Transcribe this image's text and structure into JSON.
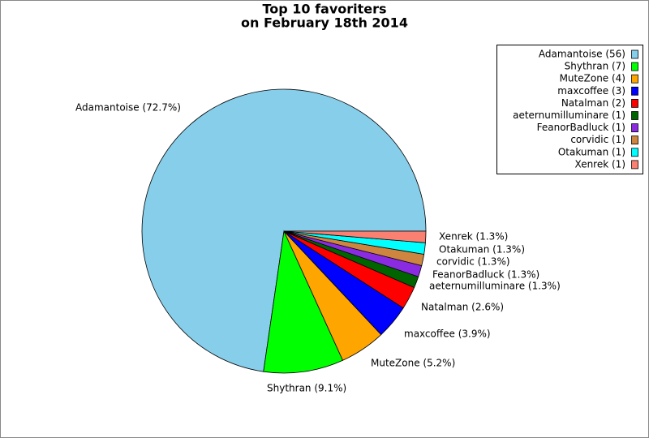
{
  "chart_data": {
    "type": "pie",
    "title": [
      "Top 10 favoriters",
      "on February 18th 2014"
    ],
    "categories": [
      "Adamantoise",
      "Shythran",
      "MuteZone",
      "maxcoffee",
      "Natalman",
      "aeternumilluminare",
      "FeanorBadluck",
      "corvidic",
      "Otakuman",
      "Xenrek"
    ],
    "values": [
      72.7,
      9.1,
      5.2,
      3.9,
      2.6,
      1.3,
      1.3,
      1.3,
      1.3,
      1.3
    ],
    "value_labels": [
      "Adamantoise (72.7%)",
      "Shythran (9.1%)",
      "MuteZone (5.2%)",
      "maxcoffee (3.9%)",
      "Natalman (2.6%)",
      "aeternumilluminare (1.3%)",
      "FeanorBadluck (1.3%)",
      "corvidic (1.3%)",
      "Otakuman (1.3%)",
      "Xenrek (1.3%)"
    ],
    "legend": [
      "Adamantoise (56)",
      "Shythran (7)",
      "MuteZone (4)",
      "maxcoffee (3)",
      "Natalman (2)",
      "aeternumilluminare (1)",
      "FeanorBadluck (1)",
      "corvidic (1)",
      "Otakuman (1)",
      "Xenrek (1)"
    ],
    "colors": [
      "#87ceeb",
      "#00ff00",
      "#ffa500",
      "#0000ff",
      "#ff0000",
      "#006400",
      "#8a2be2",
      "#cd853f",
      "#00ffff",
      "#fa8072"
    ],
    "legend_position": "upper right"
  }
}
